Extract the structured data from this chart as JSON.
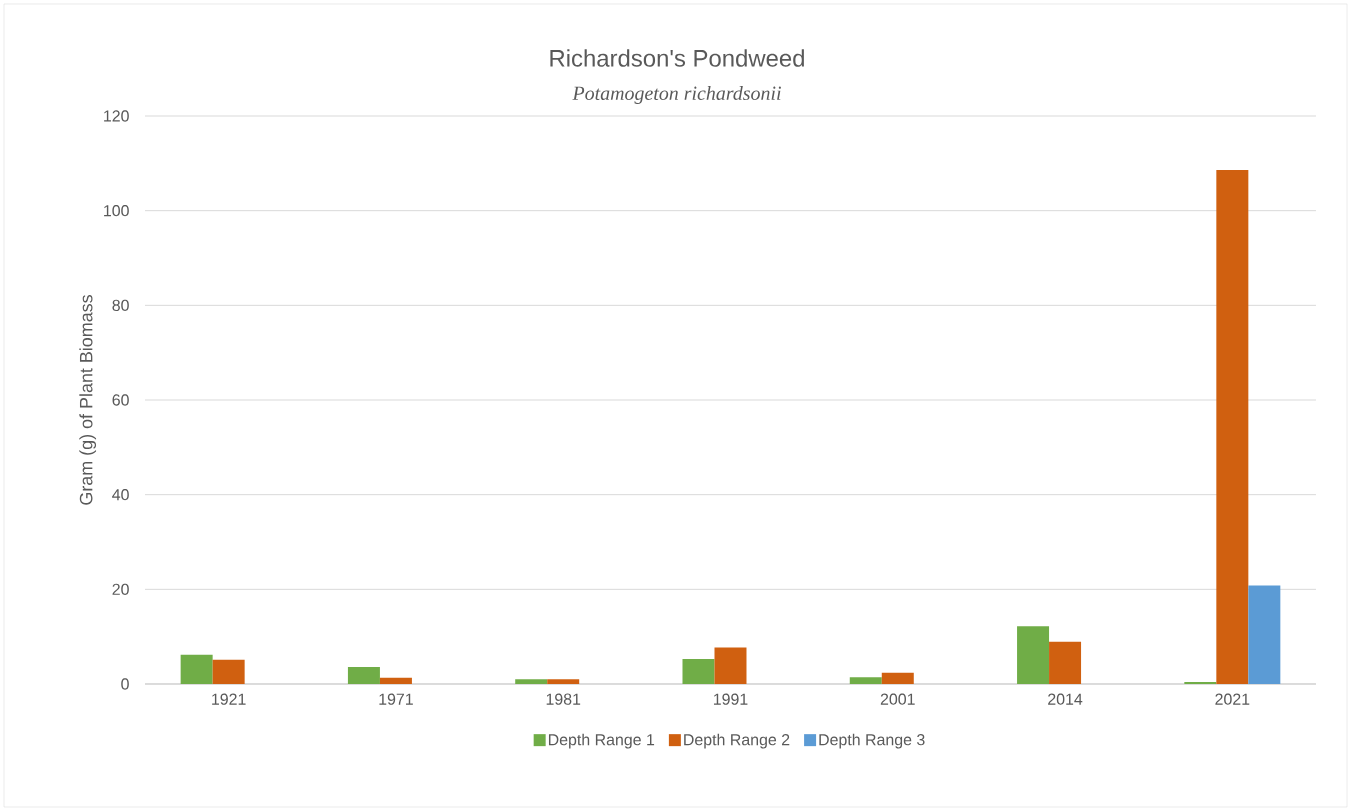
{
  "chart_data": {
    "type": "bar",
    "title": "Richardson's Pondweed",
    "subtitle": "Potamogeton richardsonii",
    "ylabel": "Gram (g) of Plant Biomass",
    "categories": [
      "1921",
      "1971",
      "1981",
      "1991",
      "2001",
      "2014",
      "2021"
    ],
    "series": [
      {
        "name": "Depth Range 1",
        "color": "#70ad47",
        "values": [
          6.2,
          3.6,
          1.0,
          5.3,
          1.4,
          12.2,
          0.4
        ]
      },
      {
        "name": "Depth Range 2",
        "color": "#d06010",
        "values": [
          5.1,
          1.3,
          1.0,
          7.7,
          2.4,
          8.9,
          108.6
        ]
      },
      {
        "name": "Depth Range 3",
        "color": "#5b9bd5",
        "values": [
          null,
          null,
          null,
          null,
          null,
          null,
          20.8
        ]
      }
    ],
    "ylim": [
      0,
      120
    ],
    "yticks": [
      0,
      20,
      40,
      60,
      80,
      100,
      120
    ],
    "grid": "y",
    "legend": "bottom"
  }
}
